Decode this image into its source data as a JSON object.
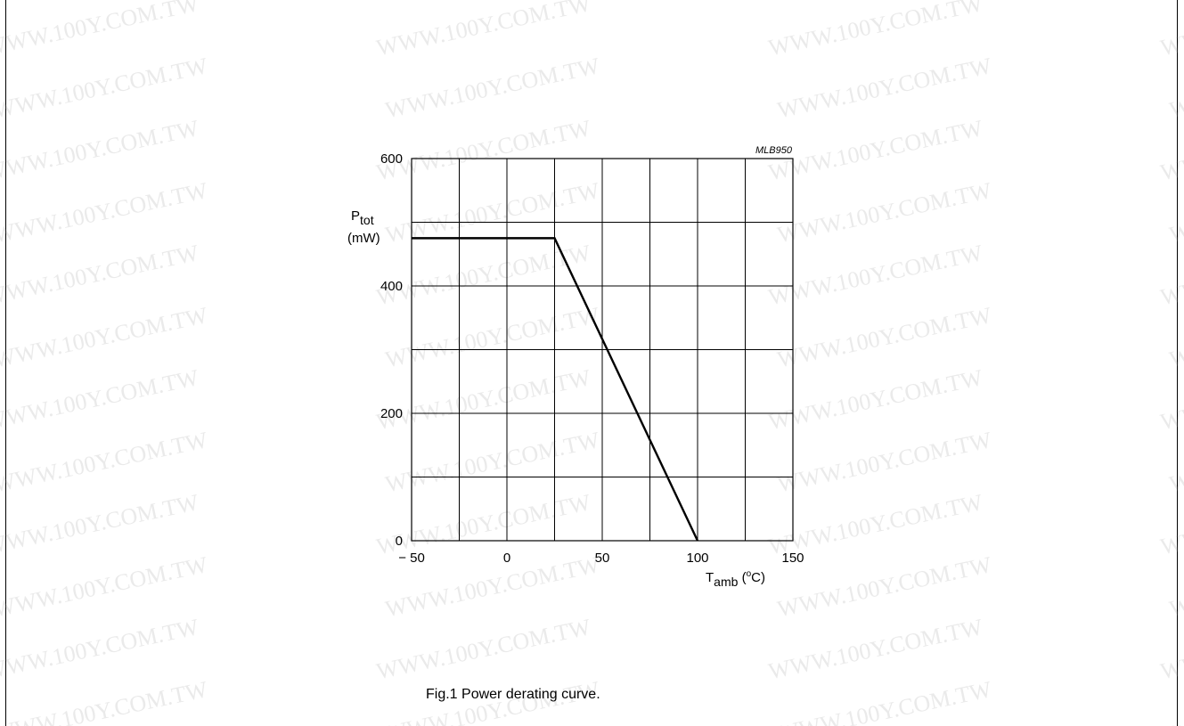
{
  "watermark_text": "WWW.100Y.COM.TW",
  "caption": "Fig.1  Power derating curve.",
  "chart_data": {
    "type": "line",
    "code": "MLB950",
    "ylabel": {
      "main": "P",
      "sub": "tot",
      "unit": "(mW)"
    },
    "xlabel": {
      "main": "T",
      "sub": "amb",
      "unit_pre": " (",
      "unit_sup": "o",
      "unit_post": "C)"
    },
    "xlim": [
      -50,
      150
    ],
    "ylim": [
      0,
      600
    ],
    "xticks": [
      -50,
      0,
      50,
      100,
      150
    ],
    "xtick_labels": [
      "− 50",
      "0",
      "50",
      "100",
      "150"
    ],
    "yticks": [
      0,
      200,
      400,
      600
    ],
    "ytick_labels": [
      "0",
      "200",
      "400",
      "600"
    ],
    "grid": {
      "x_step": 25,
      "y_step": 100
    },
    "series": [
      {
        "x": [
          -50,
          25,
          100
        ],
        "y": [
          475,
          475,
          0
        ]
      }
    ]
  }
}
